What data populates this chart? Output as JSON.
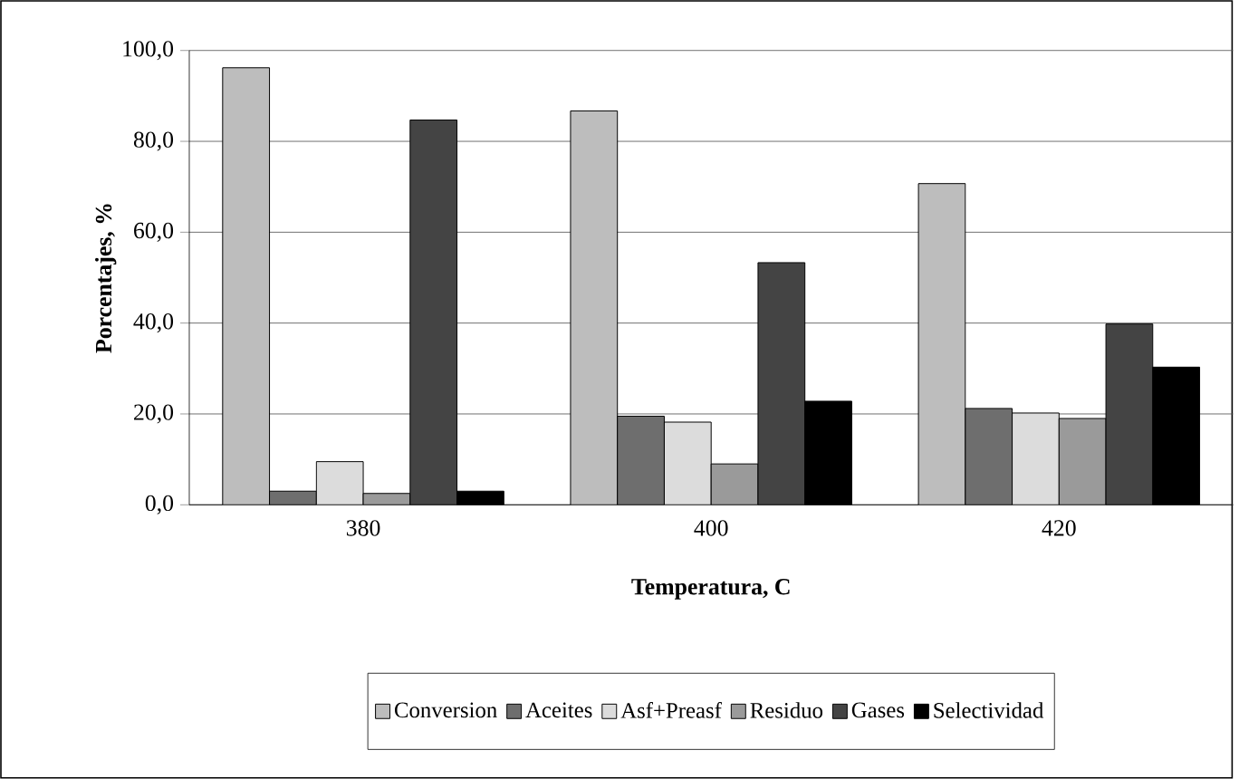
{
  "chart_data": {
    "type": "bar",
    "xlabel": "Temperatura,  C",
    "ylabel": "Porcentajes, %",
    "categories": [
      "380",
      "400",
      "420"
    ],
    "series": [
      {
        "name": "Conversion",
        "color": "#bdbdbd",
        "values": [
          96.2,
          86.7,
          70.7
        ]
      },
      {
        "name": "Aceites",
        "color": "#6e6e6e",
        "values": [
          3.0,
          19.5,
          21.2
        ]
      },
      {
        "name": "Asf+Preasf",
        "color": "#dcdcdc",
        "values": [
          9.5,
          18.2,
          20.2
        ]
      },
      {
        "name": "Residuo",
        "color": "#9a9a9a",
        "values": [
          2.5,
          9.0,
          19.0
        ]
      },
      {
        "name": "Gases",
        "color": "#444444",
        "values": [
          84.7,
          53.3,
          39.8
        ]
      },
      {
        "name": "Selectividad",
        "color": "#000000",
        "values": [
          3.0,
          22.8,
          30.3
        ]
      }
    ],
    "ylim": [
      0,
      100
    ],
    "yticks": [
      {
        "value": 0,
        "label": "0,0"
      },
      {
        "value": 20,
        "label": "20,0"
      },
      {
        "value": 40,
        "label": "40,0"
      },
      {
        "value": 60,
        "label": "60,0"
      },
      {
        "value": 80,
        "label": "80,0"
      },
      {
        "value": 100,
        "label": "100,0"
      }
    ],
    "grid": "y",
    "legend": "bottom"
  }
}
